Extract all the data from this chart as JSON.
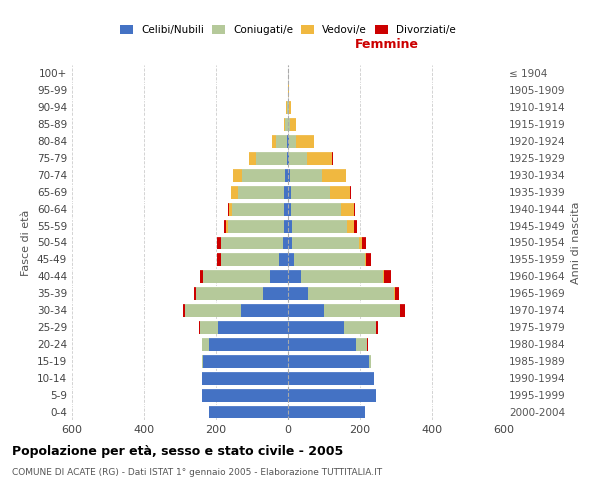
{
  "age_groups": [
    "0-4",
    "5-9",
    "10-14",
    "15-19",
    "20-24",
    "25-29",
    "30-34",
    "35-39",
    "40-44",
    "45-49",
    "50-54",
    "55-59",
    "60-64",
    "65-69",
    "70-74",
    "75-79",
    "80-84",
    "85-89",
    "90-94",
    "95-99",
    "100+"
  ],
  "birth_years": [
    "2000-2004",
    "1995-1999",
    "1990-1994",
    "1985-1989",
    "1980-1984",
    "1975-1979",
    "1970-1974",
    "1965-1969",
    "1960-1964",
    "1955-1959",
    "1950-1954",
    "1945-1949",
    "1940-1944",
    "1935-1939",
    "1930-1934",
    "1925-1929",
    "1920-1924",
    "1915-1919",
    "1910-1914",
    "1905-1909",
    "≤ 1904"
  ],
  "males": {
    "celibi": [
      220,
      240,
      240,
      235,
      220,
      195,
      130,
      70,
      50,
      25,
      15,
      12,
      10,
      10,
      8,
      4,
      2,
      1,
      1,
      0,
      0
    ],
    "coniugati": [
      0,
      0,
      0,
      5,
      20,
      50,
      155,
      185,
      185,
      160,
      170,
      155,
      145,
      130,
      120,
      85,
      30,
      8,
      3,
      1,
      0
    ],
    "vedovi": [
      0,
      0,
      0,
      0,
      0,
      0,
      0,
      0,
      1,
      1,
      2,
      5,
      10,
      18,
      25,
      20,
      12,
      3,
      1,
      0,
      0
    ],
    "divorziati": [
      0,
      0,
      0,
      0,
      0,
      1,
      7,
      5,
      8,
      12,
      10,
      7,
      3,
      1,
      1,
      0,
      0,
      0,
      0,
      0,
      0
    ]
  },
  "females": {
    "nubili": [
      215,
      245,
      240,
      225,
      190,
      155,
      100,
      55,
      35,
      18,
      12,
      10,
      8,
      7,
      5,
      3,
      2,
      1,
      1,
      0,
      0
    ],
    "coniugate": [
      0,
      0,
      0,
      5,
      30,
      90,
      210,
      240,
      230,
      195,
      185,
      155,
      140,
      110,
      90,
      50,
      20,
      5,
      3,
      1,
      0
    ],
    "vedove": [
      0,
      0,
      0,
      0,
      0,
      0,
      1,
      1,
      2,
      3,
      8,
      18,
      35,
      55,
      65,
      70,
      50,
      15,
      4,
      1,
      0
    ],
    "divorziate": [
      0,
      0,
      0,
      0,
      1,
      5,
      15,
      12,
      20,
      15,
      12,
      8,
      4,
      2,
      1,
      1,
      1,
      0,
      0,
      0,
      0
    ]
  },
  "colors": {
    "celibi": "#4472c4",
    "coniugati": "#b5c99a",
    "vedovi": "#f0b840",
    "divorziati": "#cc0000"
  },
  "title": "Popolazione per età, sesso e stato civile - 2005",
  "subtitle": "COMUNE DI ACATE (RG) - Dati ISTAT 1° gennaio 2005 - Elaborazione TUTTITALIA.IT",
  "xlabel_right": "Femmine",
  "ylabel_left": "Fasce di età",
  "ylabel_right": "Anni di nascita",
  "xlim": 600,
  "legend_labels": [
    "Celibi/Nubili",
    "Coniugati/e",
    "Vedovi/e",
    "Divorziati/e"
  ],
  "background_color": "#ffffff",
  "grid_color": "#cccccc"
}
